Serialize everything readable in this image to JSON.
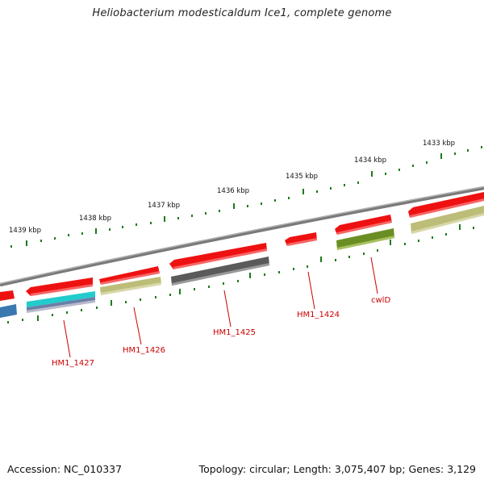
{
  "header": {
    "title": "Heliobacterium modesticaldum Ice1, complete genome"
  },
  "footer": {
    "accession": "Accession: NC_010337",
    "topology": "Topology: circular; Length: 3,075,407 bp; Genes: 3,129"
  },
  "ruler": {
    "ticks": [
      "1439 kbp",
      "1438 kbp",
      "1437 kbp",
      "1436 kbp",
      "1435 kbp",
      "1434 kbp",
      "1433 kbp"
    ]
  },
  "genes": {
    "labels": [
      "HM1_1427",
      "HM1_1426",
      "HM1_1425",
      "HM1_1424",
      "cwlD"
    ]
  },
  "colors": {
    "cds_red": "#ee1111",
    "cyan": "#22cccc",
    "olive": "#b8b870",
    "dark_olive": "#6a8e23",
    "gray": "#555555",
    "blue": "#3a78b0",
    "tick_green": "#1e7a1e",
    "label_red": "#cc0000",
    "backbone": "#8a8a8a"
  }
}
